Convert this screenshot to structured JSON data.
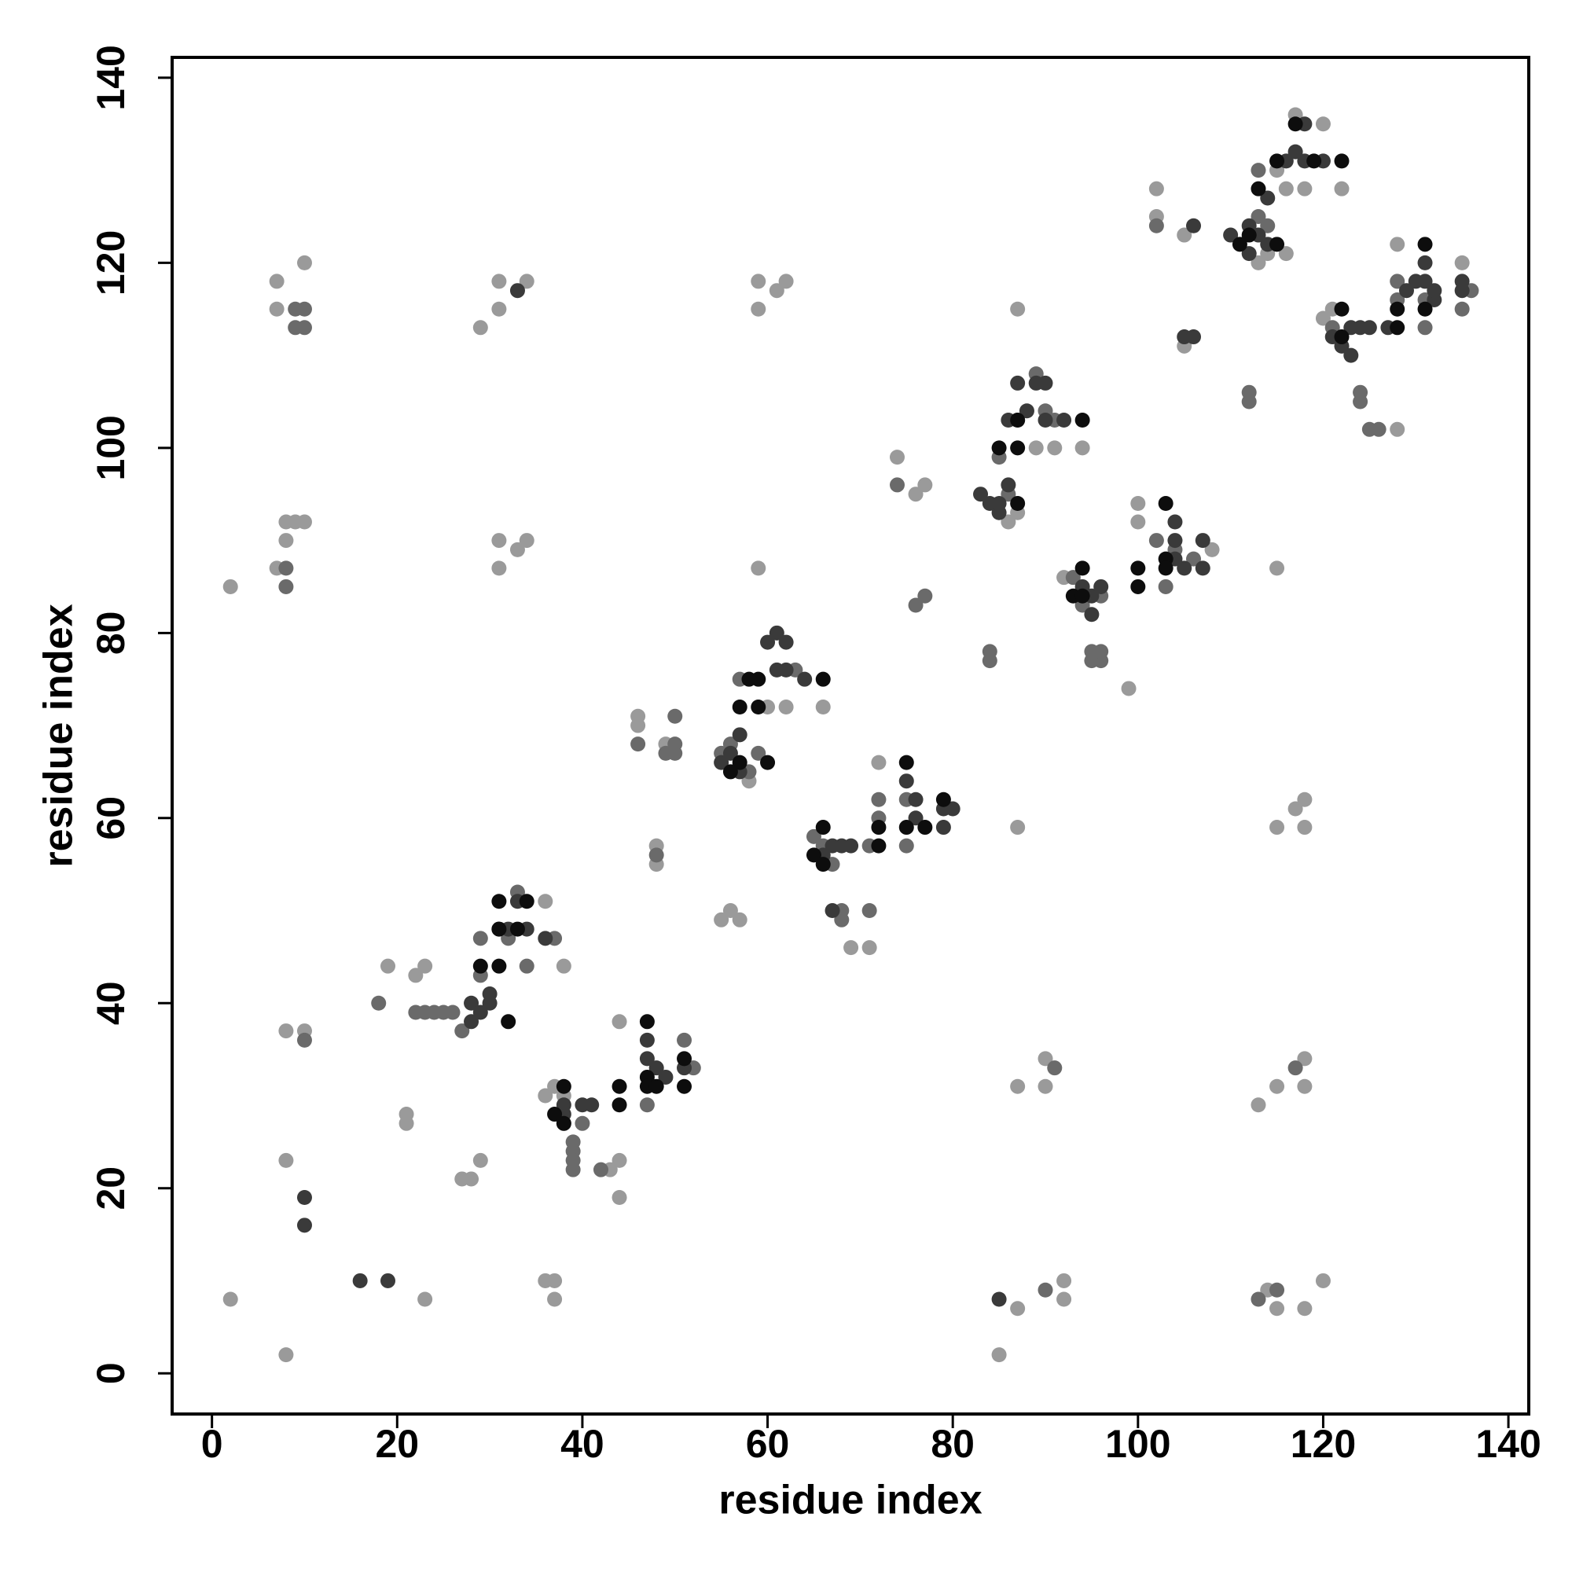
{
  "chart_data": {
    "type": "scatter",
    "xlabel": "residue index",
    "ylabel": "residue index",
    "xlim": [
      -4.3,
      142.2
    ],
    "ylim": [
      -4.4,
      142.2
    ],
    "xticks": [
      0,
      20,
      40,
      60,
      80,
      100,
      120,
      140
    ],
    "yticks": [
      0,
      20,
      40,
      60,
      80,
      100,
      120,
      140
    ],
    "series": [
      {
        "color": "#9a9a9a",
        "x": [
          2,
          2,
          7,
          7,
          7,
          8,
          8,
          8,
          8,
          8,
          9,
          10,
          10,
          10,
          21,
          21,
          19,
          22,
          23,
          23,
          27,
          28,
          29,
          29,
          31,
          31,
          31,
          31,
          33,
          34,
          34,
          36,
          36,
          37,
          37,
          38,
          36,
          37,
          38,
          44,
          44,
          44,
          43,
          46,
          46,
          48,
          48,
          49,
          59,
          59,
          61,
          62,
          59,
          55,
          56,
          57,
          66,
          62,
          60,
          58,
          72,
          69,
          71,
          74,
          76,
          77,
          87,
          87,
          87,
          90,
          90,
          92,
          92,
          87,
          85,
          86,
          87,
          89,
          91,
          94,
          92,
          99,
          100,
          100,
          102,
          102,
          108,
          105,
          105,
          113,
          114,
          115,
          115,
          117,
          118,
          118,
          115,
          118,
          118,
          113,
          114,
          115,
          118,
          120,
          122,
          120,
          117,
          116,
          118,
          115,
          116,
          120,
          121,
          128,
          128,
          135
        ],
        "values": [
          85,
          8,
          118,
          115,
          87,
          2,
          37,
          23,
          90,
          92,
          92,
          92,
          120,
          37,
          28,
          27,
          44,
          43,
          44,
          8,
          21,
          21,
          23,
          113,
          118,
          115,
          90,
          87,
          89,
          90,
          118,
          51,
          10,
          10,
          8,
          44,
          30,
          31,
          30,
          38,
          23,
          19,
          22,
          70,
          71,
          57,
          55,
          68,
          118,
          115,
          117,
          118,
          87,
          49,
          50,
          49,
          72,
          72,
          72,
          64,
          66,
          46,
          46,
          99,
          95,
          96,
          115,
          59,
          31,
          34,
          31,
          10,
          8,
          7,
          2,
          92,
          93,
          100,
          100,
          100,
          86,
          74,
          94,
          92,
          128,
          125,
          89,
          123,
          111,
          120,
          121,
          87,
          59,
          61,
          62,
          59,
          31,
          34,
          31,
          29,
          9,
          7,
          7,
          10,
          128,
          135,
          136,
          128,
          128,
          130,
          121,
          114,
          115,
          122,
          102,
          120
        ]
      },
      {
        "color": "#6a6a6a",
        "x": [
          8,
          8,
          9,
          9,
          10,
          10,
          10,
          18,
          22,
          23,
          24,
          25,
          26,
          27,
          29,
          29,
          32,
          33,
          37,
          34,
          38,
          39,
          39,
          39,
          39,
          40,
          42,
          47,
          46,
          48,
          49,
          50,
          50,
          50,
          51,
          52,
          55,
          56,
          57,
          58,
          59,
          63,
          65,
          66,
          67,
          68,
          68,
          71,
          71,
          72,
          72,
          75,
          75,
          74,
          77,
          76,
          84,
          84,
          85,
          86,
          87,
          89,
          90,
          91,
          93,
          94,
          95,
          95,
          96,
          96,
          96,
          102,
          102,
          103,
          104,
          106,
          112,
          112,
          113,
          113,
          114,
          121,
          124,
          124,
          125,
          126,
          128,
          128,
          131,
          131,
          135,
          136,
          91,
          90,
          117,
          113,
          115
        ],
        "values": [
          85,
          87,
          115,
          113,
          113,
          115,
          36,
          40,
          39,
          39,
          39,
          39,
          39,
          37,
          43,
          47,
          47,
          52,
          47,
          44,
          27,
          25,
          24,
          23,
          22,
          27,
          22,
          29,
          68,
          56,
          67,
          71,
          68,
          67,
          36,
          33,
          67,
          68,
          75,
          65,
          67,
          76,
          58,
          57,
          55,
          50,
          49,
          50,
          57,
          60,
          62,
          57,
          62,
          96,
          84,
          83,
          77,
          78,
          99,
          95,
          103,
          108,
          104,
          103,
          86,
          83,
          78,
          77,
          77,
          78,
          84,
          124,
          90,
          85,
          89,
          88,
          106,
          105,
          130,
          125,
          124,
          113,
          105,
          106,
          102,
          102,
          118,
          116,
          116,
          113,
          115,
          117,
          33,
          9,
          33,
          8,
          9
        ]
      },
      {
        "color": "#3a3a3a",
        "x": [
          10,
          10,
          16,
          19,
          33,
          28,
          28,
          29,
          30,
          30,
          31,
          32,
          34,
          36,
          33,
          38,
          38,
          40,
          41,
          47,
          47,
          48,
          49,
          51,
          55,
          56,
          57,
          57,
          60,
          61,
          61,
          62,
          62,
          64,
          66,
          67,
          68,
          69,
          67,
          75,
          76,
          76,
          79,
          80,
          79,
          83,
          84,
          85,
          86,
          85,
          86,
          87,
          88,
          89,
          90,
          90,
          92,
          94,
          95,
          95,
          96,
          104,
          104,
          104,
          105,
          107,
          107,
          105,
          106,
          106,
          110,
          112,
          112,
          113,
          114,
          114,
          116,
          117,
          118,
          118,
          120,
          121,
          122,
          123,
          123,
          124,
          125,
          127,
          129,
          130,
          131,
          131,
          132,
          132,
          135,
          135,
          85
        ],
        "values": [
          19,
          16,
          10,
          10,
          117,
          40,
          38,
          39,
          41,
          40,
          48,
          48,
          48,
          47,
          51,
          29,
          28,
          29,
          29,
          36,
          34,
          33,
          32,
          33,
          66,
          67,
          69,
          65,
          79,
          80,
          76,
          79,
          76,
          75,
          56,
          57,
          57,
          57,
          50,
          64,
          62,
          60,
          61,
          61,
          59,
          95,
          94,
          93,
          96,
          94,
          103,
          107,
          104,
          107,
          107,
          103,
          103,
          85,
          84,
          82,
          85,
          92,
          90,
          88,
          87,
          90,
          87,
          112,
          112,
          124,
          123,
          124,
          121,
          123,
          122,
          127,
          131,
          132,
          131,
          135,
          131,
          112,
          111,
          110,
          113,
          113,
          113,
          113,
          117,
          118,
          120,
          118,
          116,
          117,
          118,
          117,
          8
        ]
      },
      {
        "color": "#0d0d0d",
        "x": [
          29,
          31,
          31,
          31,
          32,
          33,
          34,
          38,
          37,
          38,
          44,
          44,
          47,
          47,
          47,
          48,
          51,
          51,
          57,
          57,
          59,
          59,
          60,
          56,
          58,
          66,
          66,
          65,
          66,
          72,
          72,
          75,
          75,
          77,
          79,
          85,
          87,
          87,
          87,
          94,
          94,
          93,
          94,
          100,
          100,
          103,
          103,
          103,
          111,
          112,
          113,
          115,
          115,
          117,
          119,
          122,
          122,
          122,
          128,
          128,
          131,
          131
        ],
        "values": [
          44,
          51,
          44,
          48,
          38,
          48,
          51,
          31,
          28,
          27,
          31,
          29,
          38,
          32,
          31,
          31,
          31,
          34,
          72,
          66,
          75,
          72,
          66,
          65,
          75,
          75,
          59,
          56,
          55,
          59,
          57,
          66,
          59,
          59,
          62,
          100,
          100,
          103,
          94,
          103,
          87,
          84,
          84,
          87,
          85,
          94,
          88,
          87,
          122,
          123,
          128,
          122,
          131,
          135,
          131,
          131,
          115,
          112,
          113,
          115,
          122,
          115
        ]
      }
    ]
  }
}
